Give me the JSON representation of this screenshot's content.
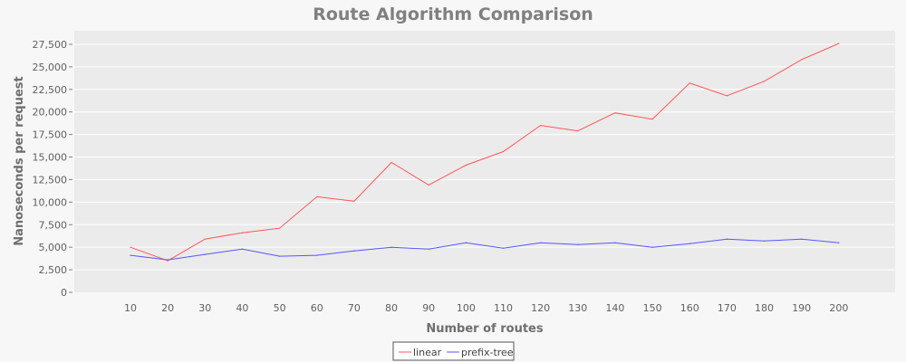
{
  "chart_data": {
    "type": "line",
    "title": "Route Algorithm Comparison",
    "xlabel": "Number of routes",
    "ylabel": "Nanoseconds per request",
    "categories": [
      10,
      20,
      30,
      40,
      50,
      60,
      70,
      80,
      90,
      100,
      110,
      120,
      130,
      140,
      150,
      160,
      170,
      180,
      190,
      200
    ],
    "yticks": [
      0,
      2500,
      5000,
      7500,
      10000,
      12500,
      15000,
      17500,
      20000,
      22500,
      25000,
      27500
    ],
    "ytick_labels": [
      "0",
      "2,500",
      "5,000",
      "7,500",
      "10,000",
      "12,500",
      "15,000",
      "17,500",
      "20,000",
      "22,500",
      "25,000",
      "27,500"
    ],
    "ylim": [
      0,
      29000
    ],
    "grid": true,
    "legend_position": "bottom-center",
    "series": [
      {
        "name": "linear",
        "color": "#ff5555",
        "values": [
          5000,
          3500,
          5900,
          6600,
          7100,
          10600,
          10100,
          14400,
          11900,
          14100,
          15600,
          18500,
          17900,
          19900,
          19200,
          23200,
          21800,
          23400,
          25800,
          27600
        ]
      },
      {
        "name": "prefix-tree",
        "color": "#5555ff",
        "values": [
          4100,
          3600,
          4200,
          4800,
          4000,
          4100,
          4600,
          5000,
          4800,
          5500,
          4900,
          5500,
          5300,
          5500,
          5000,
          5400,
          5900,
          5700,
          5900,
          5500
        ]
      }
    ]
  }
}
